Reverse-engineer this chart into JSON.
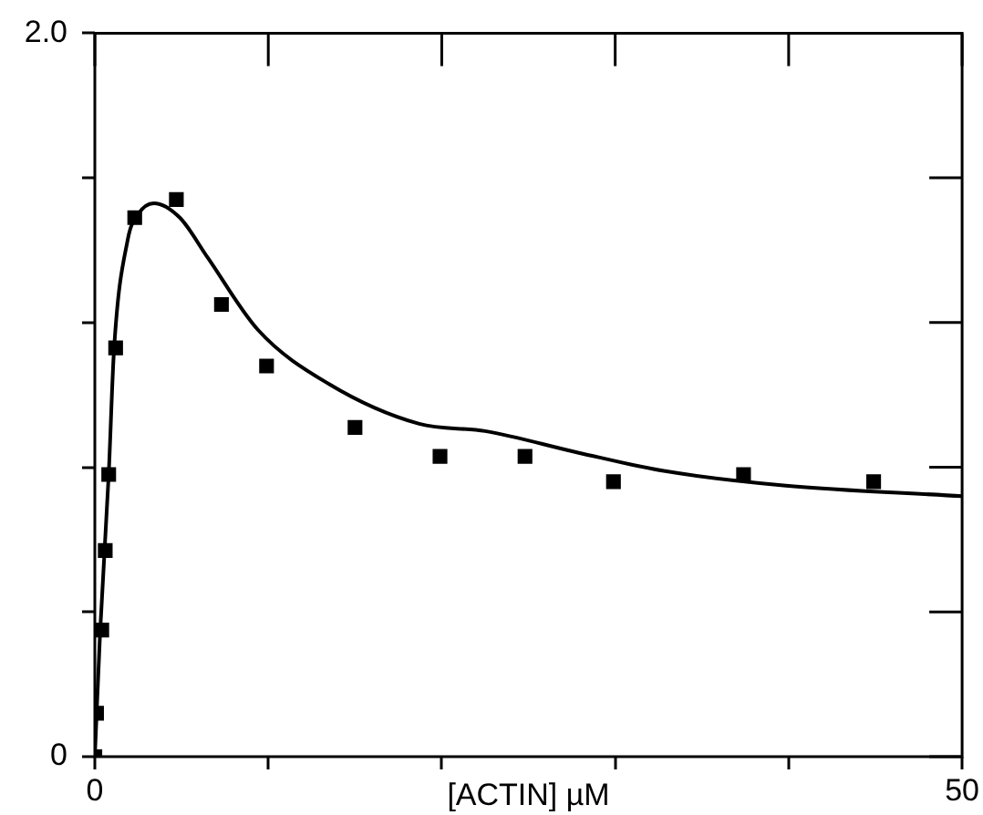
{
  "chart_data": {
    "type": "scatter",
    "xlabel": "[ACTIN] µM",
    "xlim": [
      0,
      50
    ],
    "xticks": [
      0,
      {
        "value": 10,
        "label": null
      },
      {
        "value": 20,
        "label": null
      },
      {
        "value": 30,
        "label": null
      },
      {
        "value": 40,
        "label": null
      },
      50
    ],
    "ylim": [
      0,
      2.0
    ],
    "yticks": [
      0,
      {
        "value": 0.4,
        "label": null
      },
      {
        "value": 0.8,
        "label": null
      },
      {
        "value": 1.2,
        "label": null
      },
      {
        "value": 1.6,
        "label": null
      },
      {
        "value": 2.0,
        "label": "2.0"
      }
    ],
    "grid": false,
    "legend": false,
    "series": [
      {
        "marker": "square",
        "color": "#000000",
        "x": [
          0,
          0.1,
          0.4,
          0.6,
          0.8,
          1.2,
          2.3,
          4.7,
          7.3,
          9.9,
          15.0,
          19.9,
          24.8,
          29.9,
          37.4,
          44.9
        ],
        "values": [
          0,
          0.12,
          0.35,
          0.57,
          0.78,
          1.13,
          1.49,
          1.54,
          1.25,
          1.08,
          0.91,
          0.83,
          0.83,
          0.76,
          0.78,
          0.76
        ]
      },
      {
        "type": "line",
        "marker": "none",
        "line_style": "solid",
        "color": "#000000",
        "x": [
          0,
          0.3,
          0.8,
          1.1,
          1.9,
          2.5,
          3.4,
          4.9,
          6.5,
          9.4,
          13.5,
          18.7,
          22.5,
          27.9,
          32.8,
          39.7,
          50
        ],
        "values": [
          0,
          0.34,
          0.78,
          1.12,
          1.43,
          1.5,
          1.53,
          1.49,
          1.38,
          1.18,
          1.03,
          0.92,
          0.9,
          0.84,
          0.79,
          0.75,
          0.72
        ]
      }
    ]
  }
}
